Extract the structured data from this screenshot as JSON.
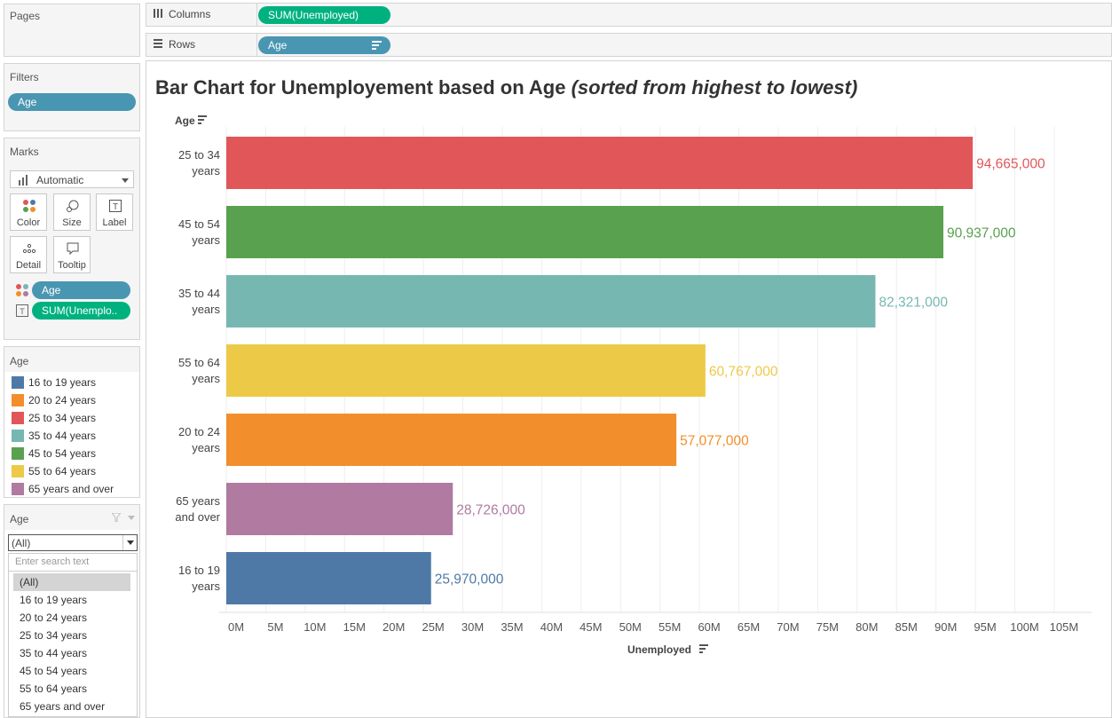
{
  "pages_panel": {
    "title": "Pages"
  },
  "filters_panel": {
    "title": "Filters",
    "pill": "Age"
  },
  "columns_shelf": {
    "label": "Columns",
    "pill": "SUM(Unemployed)"
  },
  "rows_shelf": {
    "label": "Rows",
    "pill": "Age"
  },
  "marks_panel": {
    "title": "Marks",
    "mark_type": "Automatic",
    "buttons": {
      "color": "Color",
      "size": "Size",
      "label": "Label",
      "detail": "Detail",
      "tooltip": "Tooltip"
    },
    "color_pill": "Age",
    "label_pill": "SUM(Unemplo.."
  },
  "color_legend": {
    "title": "Age",
    "items": [
      {
        "label": "16 to 19 years",
        "color": "#4e79a7"
      },
      {
        "label": "20 to 24 years",
        "color": "#f28e2b"
      },
      {
        "label": "25 to 34 years",
        "color": "#e15759"
      },
      {
        "label": "35 to 44 years",
        "color": "#76b7b2"
      },
      {
        "label": "45 to 54 years",
        "color": "#59a14f"
      },
      {
        "label": "55 to 64 years",
        "color": "#edc948"
      },
      {
        "label": "65 years and over",
        "color": "#b07aa1"
      }
    ]
  },
  "age_filter": {
    "title": "Age",
    "selected": "(All)",
    "search_placeholder": "Enter search text",
    "options": [
      "(All)",
      "16 to 19 years",
      "20 to 24 years",
      "25 to 34 years",
      "35 to 44 years",
      "45 to 54 years",
      "55 to 64 years",
      "65 years and over"
    ]
  },
  "chart_title": "Bar Chart for Unemployement based on Age",
  "chart_subtitle": "(sorted from highest to lowest)",
  "chart_data": {
    "type": "bar",
    "orientation": "horizontal",
    "ylabel": "Age",
    "xlabel": "Unemployed",
    "xlim": [
      0,
      110000000
    ],
    "x_ticks": [
      "0M",
      "5M",
      "10M",
      "15M",
      "20M",
      "25M",
      "30M",
      "35M",
      "40M",
      "45M",
      "50M",
      "55M",
      "60M",
      "65M",
      "70M",
      "75M",
      "80M",
      "85M",
      "90M",
      "95M",
      "100M",
      "105M"
    ],
    "grid": true,
    "bars": [
      {
        "category": [
          "25 to 34",
          "years"
        ],
        "value": 94665000,
        "label": "94,665,000",
        "color": "#e15759"
      },
      {
        "category": [
          "45 to 54",
          "years"
        ],
        "value": 90937000,
        "label": "90,937,000",
        "color": "#59a14f"
      },
      {
        "category": [
          "35 to 44",
          "years"
        ],
        "value": 82321000,
        "label": "82,321,000",
        "color": "#76b7b2"
      },
      {
        "category": [
          "55 to 64",
          "years"
        ],
        "value": 60767000,
        "label": "60,767,000",
        "color": "#edc948"
      },
      {
        "category": [
          "20 to 24",
          "years"
        ],
        "value": 57077000,
        "label": "57,077,000",
        "color": "#f28e2b"
      },
      {
        "category": [
          "65 years",
          "and over"
        ],
        "value": 28726000,
        "label": "28,726,000",
        "color": "#b07aa1"
      },
      {
        "category": [
          "16 to 19",
          "years"
        ],
        "value": 25970000,
        "label": "25,970,000",
        "color": "#4e79a7"
      }
    ]
  }
}
